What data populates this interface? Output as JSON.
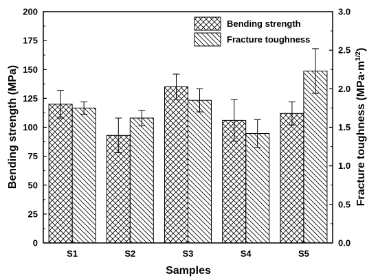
{
  "chart_data": {
    "type": "bar",
    "categories": [
      "S1",
      "S2",
      "S3",
      "S4",
      "S5"
    ],
    "series": [
      {
        "name": "Bending strength",
        "axis": "left",
        "pattern": "crosshatch",
        "values": [
          120,
          93,
          135,
          106,
          112
        ],
        "errors": [
          12,
          15,
          11,
          18,
          10
        ]
      },
      {
        "name": "Fracture toughness",
        "axis": "right",
        "pattern": "diagonal",
        "values": [
          1.75,
          1.62,
          1.85,
          1.42,
          2.23
        ],
        "errors": [
          0.08,
          0.1,
          0.15,
          0.18,
          0.29
        ]
      }
    ],
    "xlabel": "Samples",
    "ylabel": "Bending strength (MPa)",
    "y2label_main": "Fracture toughness (MPa·m",
    "y2label_sup": "1/2",
    "y2label_close": ")",
    "ylim": [
      0,
      200
    ],
    "y2lim": [
      0,
      3.0
    ],
    "yticks": [
      "0",
      "25",
      "50",
      "75",
      "100",
      "125",
      "150",
      "175",
      "200"
    ],
    "y2ticks": [
      "0.0",
      "0.5",
      "1.0",
      "1.5",
      "2.0",
      "2.5",
      "3.0"
    ],
    "legend_position": "top-right",
    "grid": false
  }
}
